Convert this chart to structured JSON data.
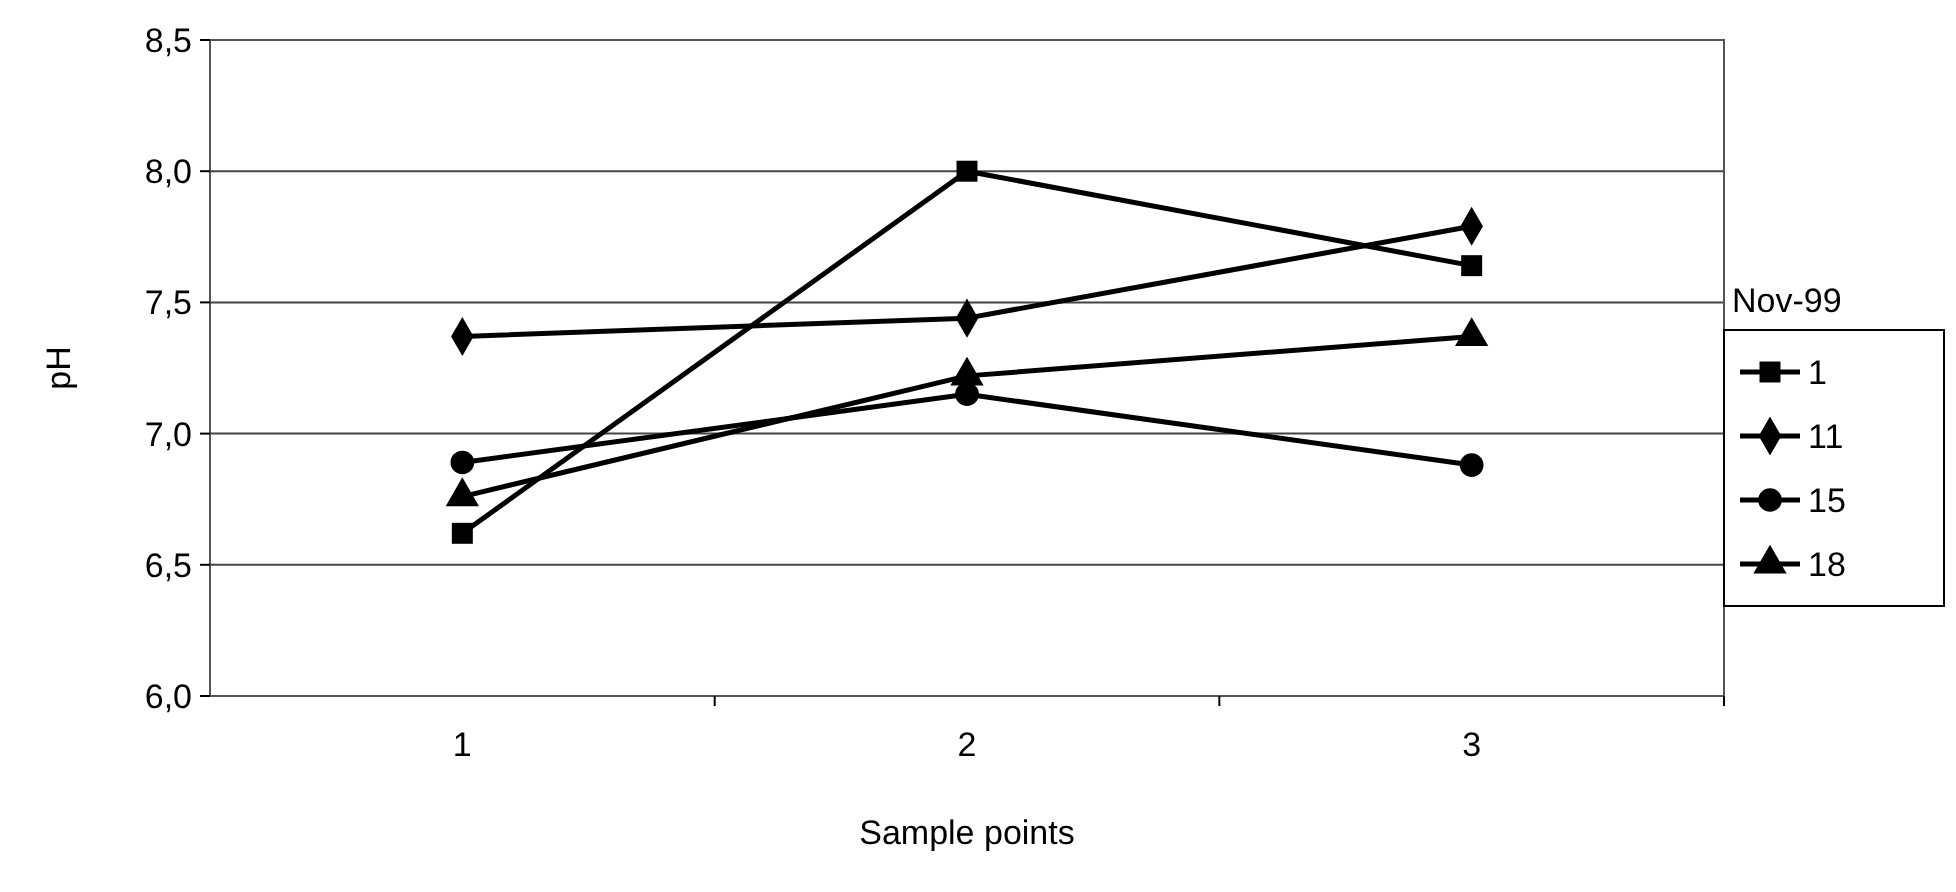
{
  "chart_data": {
    "type": "line",
    "xlabel": "Sample points",
    "ylabel": "pH",
    "legend_title": "Nov-99",
    "categories": [
      "1",
      "2",
      "3"
    ],
    "series": [
      {
        "name": "1",
        "color": "#000000",
        "marker": "square",
        "values": [
          6.62,
          8.0,
          7.64
        ]
      },
      {
        "name": "11",
        "color": "#000000",
        "marker": "diamond",
        "values": [
          7.37,
          7.44,
          7.79
        ]
      },
      {
        "name": "15",
        "color": "#000000",
        "marker": "circle",
        "values": [
          6.89,
          7.15,
          6.88
        ]
      },
      {
        "name": "18",
        "color": "#000000",
        "marker": "triangle",
        "values": [
          6.76,
          7.22,
          7.37
        ]
      }
    ],
    "ylim": [
      6.0,
      8.5
    ],
    "yticks": [
      {
        "value": 6.0,
        "label": "6,0"
      },
      {
        "value": 6.5,
        "label": "6,5"
      },
      {
        "value": 7.0,
        "label": "7,0"
      },
      {
        "value": 7.5,
        "label": "7,5"
      },
      {
        "value": 8.0,
        "label": "8,0"
      },
      {
        "value": 8.5,
        "label": "8,5"
      }
    ],
    "grid": "y",
    "legend": "right",
    "line_style": "solid"
  }
}
